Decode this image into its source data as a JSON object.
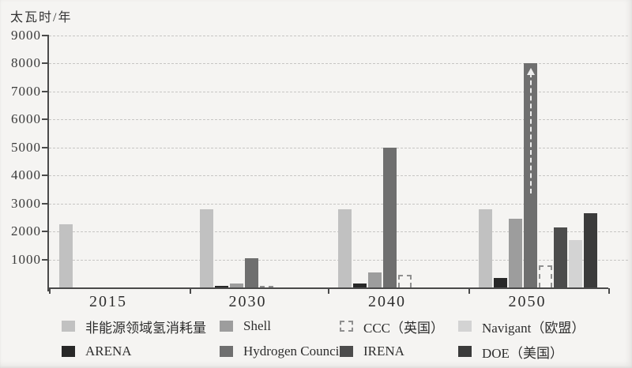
{
  "figure": {
    "unit_label": "太瓦时/年",
    "background": "#f5f4f2"
  },
  "chart_data": {
    "type": "bar",
    "title": "",
    "ylabel": "太瓦时/年",
    "categories": [
      "2015",
      "2030",
      "2040",
      "2050"
    ],
    "ylim": [
      0,
      9000
    ],
    "yticks": [
      1000,
      2000,
      3000,
      4000,
      5000,
      6000,
      7000,
      8000,
      9000
    ],
    "grid": "horizontal-dashed",
    "legend_position": "bottom",
    "series": [
      {
        "name": "非能源领域氢消耗量",
        "slug": "non-energy-hydrogen-consumption",
        "color": "#c1c1c1",
        "values": [
          2250,
          2780,
          2780,
          2780
        ]
      },
      {
        "name": "ARENA",
        "slug": "arena",
        "color": "#282828",
        "values": [
          null,
          50,
          150,
          350
        ]
      },
      {
        "name": "Shell",
        "slug": "shell",
        "color": "#9d9d9d",
        "values": [
          null,
          150,
          550,
          2450
        ]
      },
      {
        "name": "Hydrogen Council",
        "slug": "hydrogen-council",
        "color": "#6f6f6f",
        "values": [
          null,
          1050,
          5000,
          8000
        ]
      },
      {
        "name": "CCC（英国）",
        "slug": "ccc-uk",
        "color": "none",
        "outline": "dashed",
        "values": [
          null,
          60,
          450,
          800
        ]
      },
      {
        "name": "IRENA",
        "slug": "irena",
        "color": "#4c4c4c",
        "values": [
          null,
          null,
          null,
          2150
        ]
      },
      {
        "name": "Navigant（欧盟）",
        "slug": "navigant-eu",
        "color": "#d3d3d3",
        "values": [
          null,
          null,
          null,
          1700
        ]
      },
      {
        "name": "DOE（美国）",
        "slug": "doe-us",
        "color": "#3b3b3b",
        "values": [
          null,
          null,
          null,
          2650
        ]
      }
    ],
    "annotations": [
      {
        "type": "overflow-arrow",
        "series": "Hydrogen Council",
        "category": "2050"
      }
    ]
  }
}
